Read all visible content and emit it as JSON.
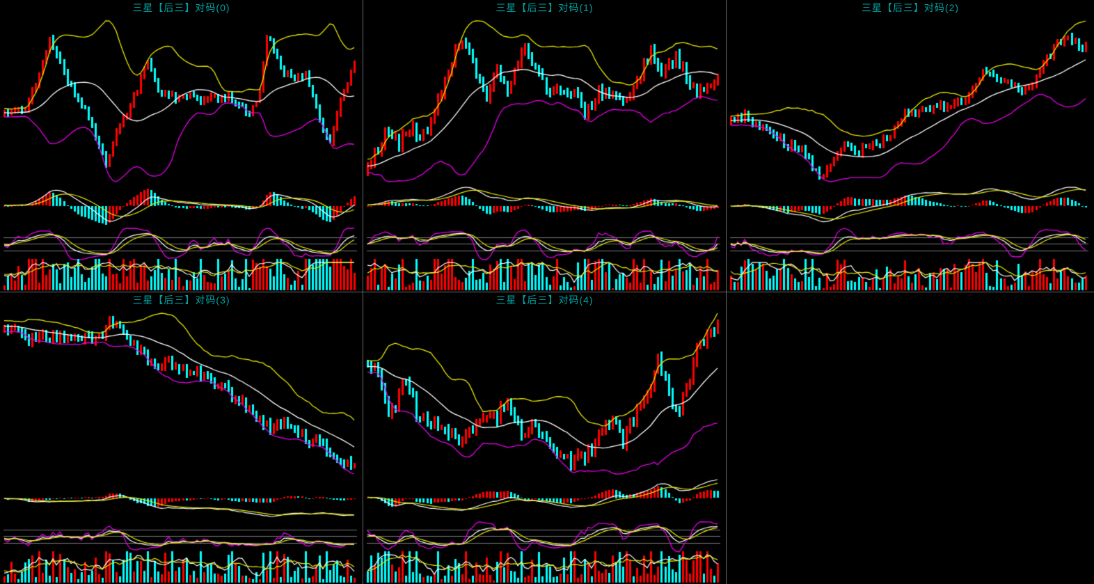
{
  "window": {
    "background": "#000000",
    "divider_color": "#6e6e6e",
    "title_color": "#00a2a2",
    "grid": {
      "columns": 3,
      "rows": 2,
      "filled_cells": 5,
      "empty_cell_position": "bottom-right"
    }
  },
  "colors": {
    "candle_up": "#ff0000",
    "candle_down": "#00ffff",
    "boll_upper": "#e8e800",
    "boll_mid": "#ffffff",
    "boll_lower": "#e800e8",
    "macd_dif": "#ffffff",
    "macd_dea": "#e8e800",
    "kdj_k": "#ffffff",
    "kdj_d": "#e8e800",
    "kdj_j": "#e800e8",
    "vol_ma5": "#ffffff",
    "vol_ma10": "#e8e800",
    "kdj_gridline": "#787878"
  },
  "chart_data": [
    {
      "type": "candlestick-multi-pane",
      "title": "三星【后三】对码(0)",
      "panes": [
        "price-with-bollinger-bands",
        "macd-histogram",
        "kdj-oscillator",
        "volume-with-ma"
      ],
      "kdj_gridlines": [
        80,
        50,
        20
      ],
      "legend": "none",
      "axis_labels": "none",
      "num_candles": 101,
      "seed": 101,
      "price_path": [
        [
          0,
          39
        ],
        [
          6,
          42
        ],
        [
          9,
          57
        ],
        [
          13,
          87
        ],
        [
          17,
          64
        ],
        [
          20,
          51
        ],
        [
          24,
          35
        ],
        [
          29,
          4
        ],
        [
          32,
          26
        ],
        [
          36,
          42
        ],
        [
          41,
          72
        ],
        [
          44,
          52
        ],
        [
          49,
          48
        ],
        [
          53,
          52
        ],
        [
          56,
          46
        ],
        [
          60,
          49
        ],
        [
          64,
          48
        ],
        [
          67,
          43
        ],
        [
          70,
          37
        ],
        [
          73,
          52
        ],
        [
          75,
          89
        ],
        [
          77,
          80
        ],
        [
          80,
          65
        ],
        [
          83,
          61
        ],
        [
          86,
          64
        ],
        [
          89,
          43
        ],
        [
          91,
          24
        ],
        [
          93,
          20
        ],
        [
          96,
          48
        ],
        [
          100,
          73
        ]
      ]
    },
    {
      "type": "candlestick-multi-pane",
      "title": "三星【后三】对码(1)",
      "panes": [
        "price-with-bollinger-bands",
        "macd-histogram",
        "kdj-oscillator",
        "volume-with-ma"
      ],
      "kdj_gridlines": [
        80,
        50,
        20
      ],
      "legend": "none",
      "axis_labels": "none",
      "num_candles": 101,
      "seed": 202,
      "price_path": [
        [
          0,
          30
        ],
        [
          5,
          44
        ],
        [
          9,
          41
        ],
        [
          13,
          47
        ],
        [
          15,
          43
        ],
        [
          18,
          50
        ],
        [
          26,
          86
        ],
        [
          28,
          83
        ],
        [
          34,
          63
        ],
        [
          37,
          74
        ],
        [
          40,
          65
        ],
        [
          45,
          83
        ],
        [
          50,
          67
        ],
        [
          56,
          62
        ],
        [
          60,
          61
        ],
        [
          62,
          54
        ],
        [
          66,
          64
        ],
        [
          70,
          62
        ],
        [
          75,
          61
        ],
        [
          81,
          82
        ],
        [
          84,
          70
        ],
        [
          88,
          79
        ],
        [
          92,
          67
        ],
        [
          95,
          64
        ],
        [
          98,
          66
        ],
        [
          100,
          70
        ]
      ]
    },
    {
      "type": "candlestick-multi-pane",
      "title": "三星【后三】对码(2)",
      "panes": [
        "price-with-bollinger-bands",
        "macd-histogram",
        "kdj-oscillator",
        "volume-with-ma"
      ],
      "kdj_gridlines": [
        80,
        50,
        20
      ],
      "legend": "none",
      "axis_labels": "none",
      "num_candles": 101,
      "seed": 303,
      "price_path": [
        [
          0,
          37
        ],
        [
          4,
          40
        ],
        [
          8,
          33
        ],
        [
          12,
          28
        ],
        [
          16,
          22
        ],
        [
          20,
          20
        ],
        [
          25,
          3
        ],
        [
          28,
          11
        ],
        [
          32,
          22
        ],
        [
          36,
          18
        ],
        [
          40,
          24
        ],
        [
          44,
          25
        ],
        [
          48,
          40
        ],
        [
          52,
          41
        ],
        [
          56,
          43
        ],
        [
          60,
          46
        ],
        [
          64,
          48
        ],
        [
          68,
          54
        ],
        [
          71,
          66
        ],
        [
          74,
          63
        ],
        [
          78,
          60
        ],
        [
          82,
          57
        ],
        [
          85,
          60
        ],
        [
          88,
          72
        ],
        [
          92,
          85
        ],
        [
          95,
          88
        ],
        [
          98,
          83
        ],
        [
          100,
          83
        ]
      ]
    },
    {
      "type": "candlestick-multi-pane",
      "title": "三星【后三】对码(3)",
      "panes": [
        "price-with-bollinger-bands",
        "macd-histogram",
        "kdj-oscillator",
        "volume-with-ma"
      ],
      "kdj_gridlines": [
        80,
        50,
        20
      ],
      "legend": "none",
      "axis_labels": "none",
      "num_candles": 101,
      "seed": 404,
      "price_path": [
        [
          0,
          79
        ],
        [
          5,
          73
        ],
        [
          10,
          71
        ],
        [
          12,
          74
        ],
        [
          15,
          72
        ],
        [
          19,
          72
        ],
        [
          24,
          72
        ],
        [
          28,
          74
        ],
        [
          30,
          79
        ],
        [
          33,
          78
        ],
        [
          35,
          72
        ],
        [
          38,
          67
        ],
        [
          41,
          60
        ],
        [
          44,
          57
        ],
        [
          47,
          60
        ],
        [
          50,
          57
        ],
        [
          53,
          56
        ],
        [
          56,
          54
        ],
        [
          59,
          50
        ],
        [
          62,
          48
        ],
        [
          65,
          43
        ],
        [
          68,
          40
        ],
        [
          71,
          33
        ],
        [
          74,
          29
        ],
        [
          77,
          28
        ],
        [
          80,
          30
        ],
        [
          83,
          26
        ],
        [
          86,
          20
        ],
        [
          89,
          21
        ],
        [
          92,
          16
        ],
        [
          95,
          11
        ],
        [
          98,
          8
        ],
        [
          100,
          8
        ]
      ]
    },
    {
      "type": "candlestick-multi-pane",
      "title": "三星【后三】对码(4)",
      "panes": [
        "price-with-bollinger-bands",
        "macd-histogram",
        "kdj-oscillator",
        "volume-with-ma"
      ],
      "kdj_gridlines": [
        80,
        50,
        20
      ],
      "legend": "none",
      "axis_labels": "none",
      "num_candles": 101,
      "seed": 505,
      "price_path": [
        [
          0,
          68
        ],
        [
          2,
          68
        ],
        [
          4,
          57
        ],
        [
          6,
          48
        ],
        [
          8,
          47
        ],
        [
          10,
          61
        ],
        [
          11,
          61
        ],
        [
          13,
          55
        ],
        [
          14,
          46
        ],
        [
          17,
          43
        ],
        [
          19,
          43
        ],
        [
          21,
          40
        ],
        [
          23,
          38
        ],
        [
          25,
          36
        ],
        [
          27,
          34
        ],
        [
          29,
          39
        ],
        [
          31,
          42
        ],
        [
          33,
          45
        ],
        [
          35,
          47
        ],
        [
          37,
          43
        ],
        [
          38,
          52
        ],
        [
          40,
          50
        ],
        [
          42,
          44
        ],
        [
          44,
          37
        ],
        [
          46,
          39
        ],
        [
          48,
          40
        ],
        [
          50,
          36
        ],
        [
          52,
          29
        ],
        [
          54,
          26
        ],
        [
          56,
          28
        ],
        [
          58,
          23
        ],
        [
          60,
          26
        ],
        [
          62,
          27
        ],
        [
          64,
          30
        ],
        [
          66,
          36
        ],
        [
          68,
          41
        ],
        [
          70,
          45
        ],
        [
          72,
          38
        ],
        [
          73,
          34
        ],
        [
          75,
          41
        ],
        [
          77,
          47
        ],
        [
          79,
          51
        ],
        [
          81,
          58
        ],
        [
          83,
          71
        ],
        [
          85,
          62
        ],
        [
          87,
          51
        ],
        [
          89,
          46
        ],
        [
          90,
          55
        ],
        [
          92,
          62
        ],
        [
          93,
          72
        ],
        [
          95,
          78
        ],
        [
          96,
          80
        ],
        [
          98,
          83
        ],
        [
          100,
          87
        ]
      ]
    }
  ]
}
